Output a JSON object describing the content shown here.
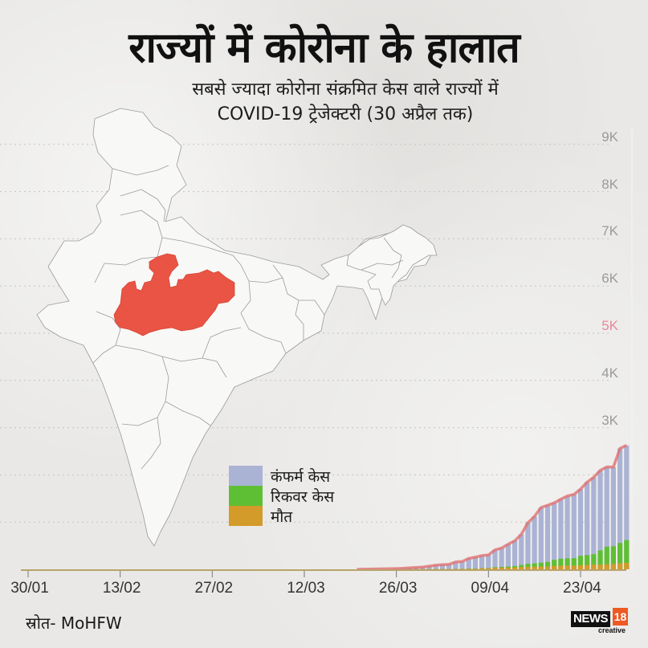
{
  "header": {
    "title": "राज्यों में कोरोना के हालात",
    "subtitle_line1": "सबसे ज्यादा कोरोना संक्रमित केस वाले राज्यों में",
    "subtitle_line2": "COVID-19 ट्रेजेक्टरी (30 अप्रैल तक)"
  },
  "map": {
    "highlighted_state": "Madhya Pradesh",
    "highlight_color": "#e95444",
    "base_color": "#f7f7f7",
    "border_color": "#9a9a9a"
  },
  "legend": {
    "items": [
      {
        "label": "कंफर्म केस",
        "color": "#aab3d4"
      },
      {
        "label": "रिकवर केस",
        "color": "#5fbf34"
      },
      {
        "label": "मौत",
        "color": "#d39b2a"
      }
    ]
  },
  "source": "स्रोत- MoHFW",
  "logo": {
    "brand": "NEWS",
    "number": "18",
    "tagline": "creative"
  },
  "colors": {
    "confirmed": "#aab3d4",
    "recovered": "#5fbf34",
    "deaths": "#d39b2a",
    "trend_line": "#e07070",
    "axis": "#b9a36a",
    "grid": "#c4c4c4"
  },
  "chart_data": {
    "type": "bar",
    "title": "राज्यों में कोरोना के हालात",
    "subtitle": "सबसे ज्यादा कोरोना संक्रमित केस वाले राज्यों में COVID-19 ट्रेजेक्टरी (30 अप्रैल तक)",
    "xlabel": "",
    "ylabel": "",
    "stacked": true,
    "y_ticks": [
      "1K",
      "2K",
      "3K",
      "4K",
      "5K",
      "6K",
      "7K",
      "8K",
      "9K"
    ],
    "y_tick_values": [
      1000,
      2000,
      3000,
      4000,
      5000,
      6000,
      7000,
      8000,
      9000
    ],
    "highlighted_y_tick": "5K",
    "ylim": [
      0,
      9000
    ],
    "x_ticks": [
      "30/01",
      "13/02",
      "27/02",
      "12/03",
      "26/03",
      "09/04",
      "23/04"
    ],
    "x_range": [
      "30/01",
      "30/04"
    ],
    "grid": true,
    "legend_position": "inside-left",
    "categories": [
      "26/03",
      "27/03",
      "28/03",
      "29/03",
      "30/03",
      "31/03",
      "01/04",
      "02/04",
      "03/04",
      "04/04",
      "05/04",
      "06/04",
      "07/04",
      "08/04",
      "09/04",
      "10/04",
      "11/04",
      "12/04",
      "13/04",
      "14/04",
      "15/04",
      "16/04",
      "17/04",
      "18/04",
      "19/04",
      "20/04",
      "21/04",
      "22/04",
      "23/04",
      "24/04",
      "25/04",
      "26/04",
      "27/04",
      "28/04",
      "29/04",
      "30/04"
    ],
    "series": [
      {
        "name": "कंफर्म केस",
        "values": [
          15,
          20,
          30,
          39,
          47,
          66,
          86,
          99,
          104,
          154,
          165,
          229,
          256,
          290,
          304,
          411,
          451,
          532,
          604,
          741,
          987,
          1120,
          1310,
          1355,
          1407,
          1485,
          1552,
          1587,
          1699,
          1846,
          1945,
          2096,
          2168,
          2165,
          2560,
          2625
        ]
      },
      {
        "name": "रिकवर केस",
        "values": [
          0,
          0,
          0,
          0,
          0,
          0,
          0,
          0,
          0,
          2,
          2,
          5,
          5,
          6,
          6,
          12,
          15,
          22,
          30,
          42,
          64,
          70,
          80,
          98,
          127,
          148,
          152,
          156,
          203,
          210,
          222,
          302,
          369,
          377,
          428,
          482
        ]
      },
      {
        "name": "मौत",
        "values": [
          1,
          1,
          2,
          2,
          3,
          4,
          6,
          6,
          6,
          8,
          9,
          12,
          14,
          21,
          21,
          33,
          36,
          38,
          40,
          50,
          53,
          56,
          60,
          60,
          73,
          76,
          80,
          80,
          83,
          92,
          99,
          99,
          110,
          113,
          130,
          137
        ]
      }
    ]
  }
}
